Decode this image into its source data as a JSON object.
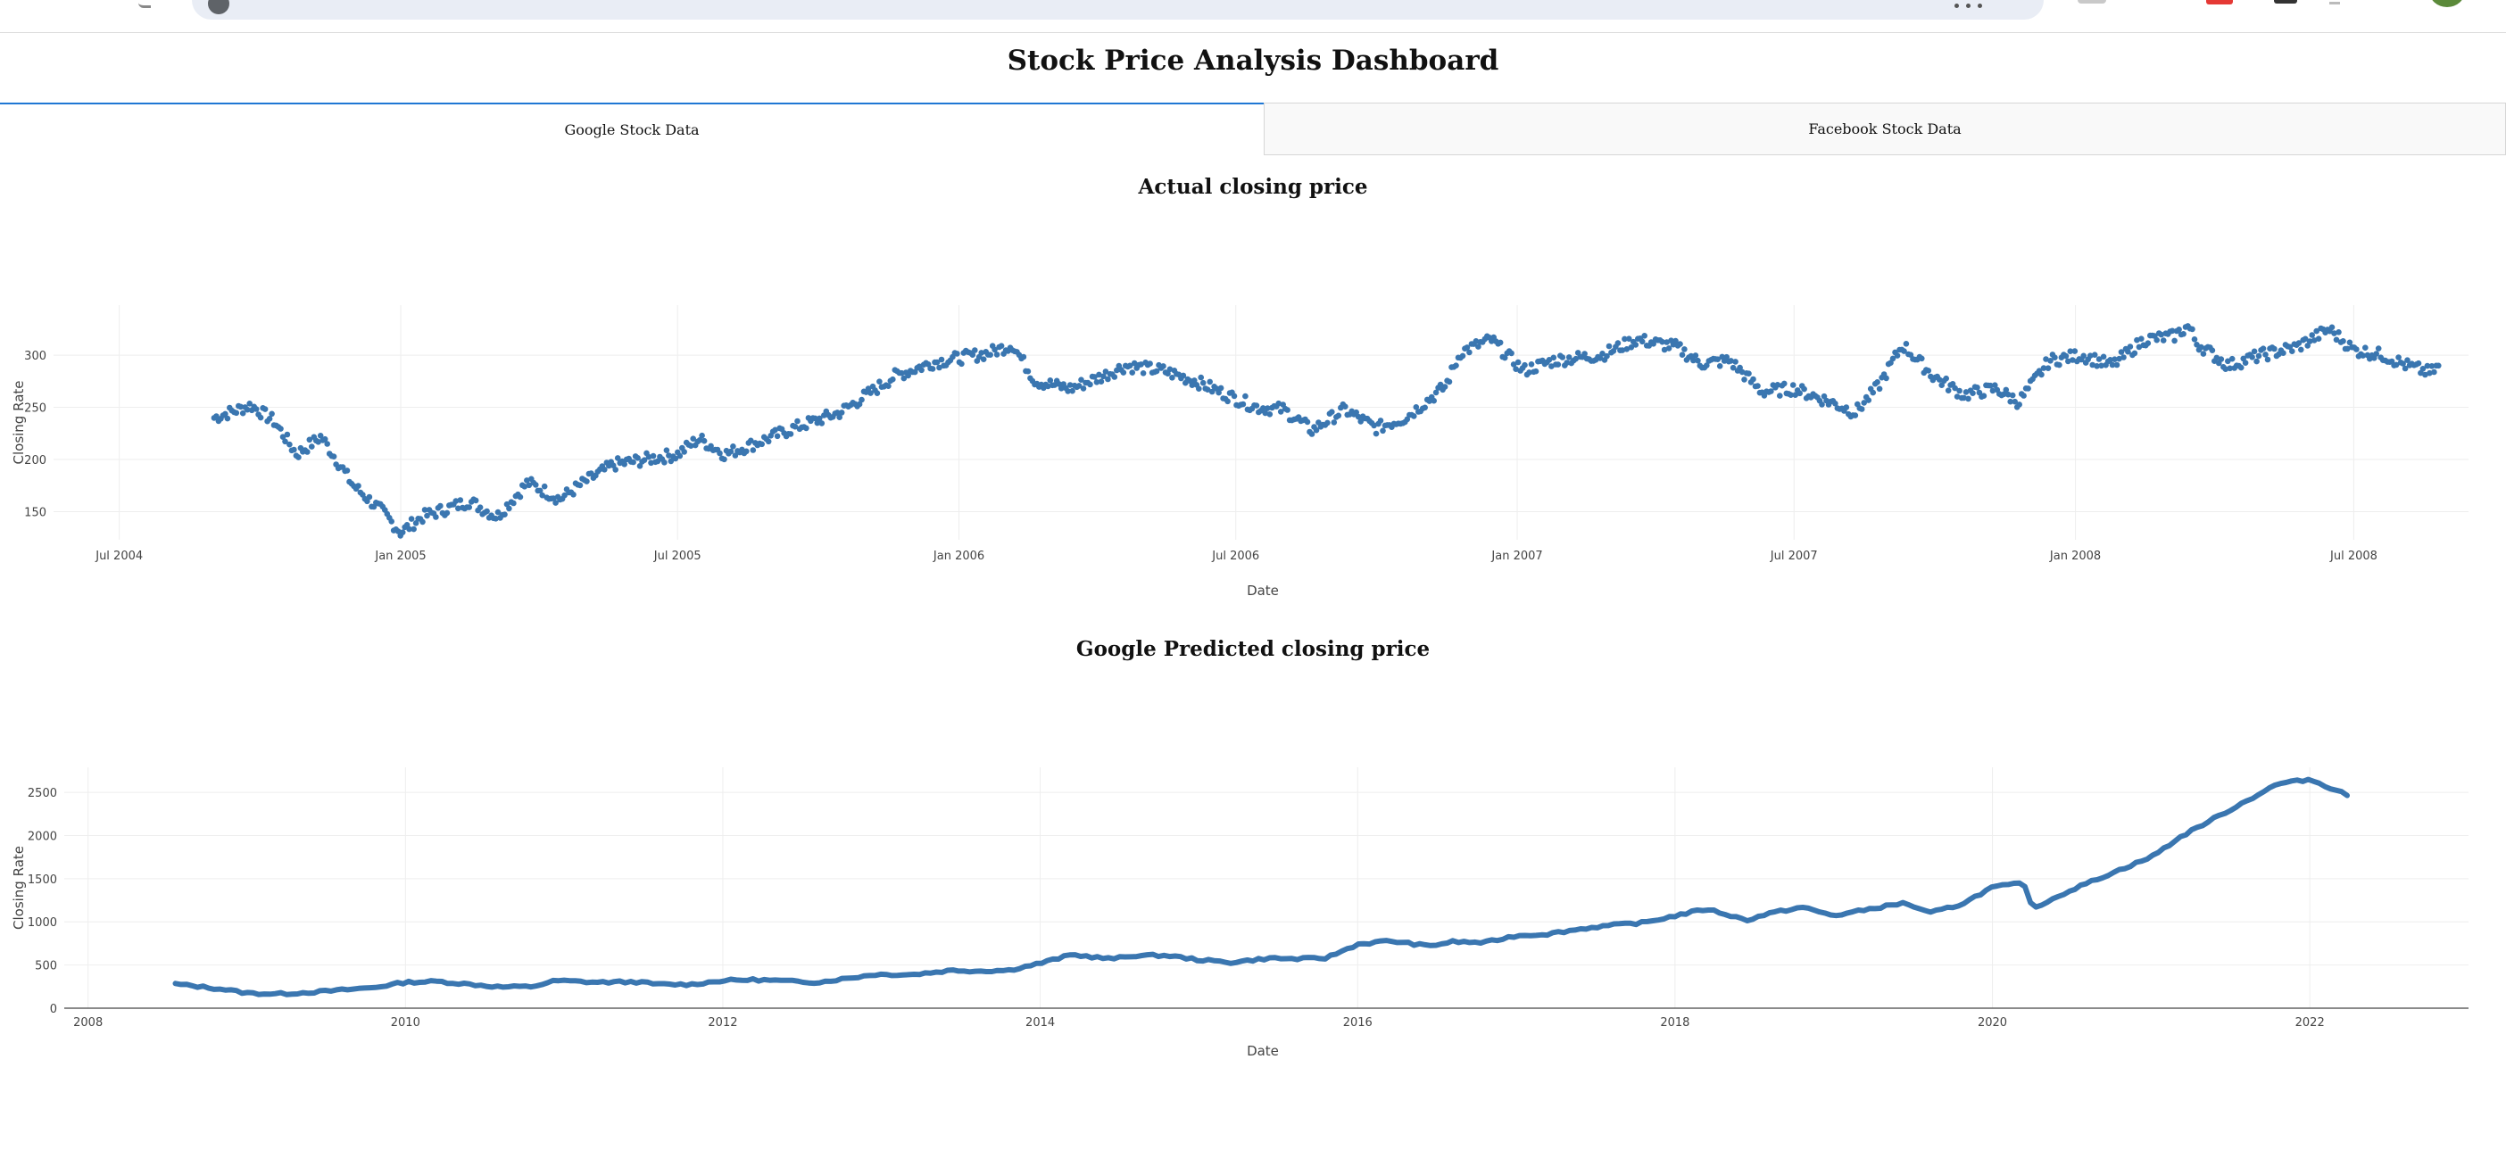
{
  "dashboard": {
    "title": "Stock Price Analysis Dashboard",
    "tabs": [
      {
        "label": "Google Stock Data",
        "active": true
      },
      {
        "label": "Facebook Stock Data",
        "active": false
      }
    ]
  },
  "colors": {
    "series": "#3a76b0",
    "tab_accent": "#1f77d4"
  },
  "chart_data": [
    {
      "type": "scatter",
      "title": "Actual closing price",
      "xlabel": "Date",
      "ylabel": "Closing Rate",
      "x_ticks": [
        "Jul 2004",
        "Jan 2005",
        "Jul 2005",
        "Jan 2006",
        "Jul 2006",
        "Jan 2007",
        "Jul 2007",
        "Jan 2008",
        "Jul 2008"
      ],
      "y_ticks": [
        150,
        200,
        250,
        300
      ],
      "xlim": [
        "2004-05-19",
        "2008-09-14"
      ],
      "ylim": [
        123,
        348
      ],
      "grid": true,
      "series": [
        {
          "points": [
            [
              "2004-09-01",
              240
            ],
            [
              "2004-09-25",
              252
            ],
            [
              "2004-10-10",
              237
            ],
            [
              "2004-10-25",
              205
            ],
            [
              "2004-11-10",
              222
            ],
            [
              "2004-12-01",
              175
            ],
            [
              "2004-12-20",
              150
            ],
            [
              "2005-01-01",
              130
            ],
            [
              "2005-01-15",
              145
            ],
            [
              "2005-02-15",
              160
            ],
            [
              "2005-03-05",
              145
            ],
            [
              "2005-03-25",
              178
            ],
            [
              "2005-04-15",
              162
            ],
            [
              "2005-05-01",
              178
            ],
            [
              "2005-05-20",
              195
            ],
            [
              "2005-06-10",
              200
            ],
            [
              "2005-07-01",
              205
            ],
            [
              "2005-07-15",
              220
            ],
            [
              "2005-08-01",
              205
            ],
            [
              "2005-08-20",
              215
            ],
            [
              "2005-09-15",
              230
            ],
            [
              "2005-10-15",
              245
            ],
            [
              "2005-11-05",
              265
            ],
            [
              "2005-11-20",
              280
            ],
            [
              "2005-12-15",
              293
            ],
            [
              "2006-01-20",
              302
            ],
            [
              "2006-02-05",
              310
            ],
            [
              "2006-02-20",
              275
            ],
            [
              "2006-03-15",
              268
            ],
            [
              "2006-04-05",
              280
            ],
            [
              "2006-04-20",
              290
            ],
            [
              "2006-05-15",
              285
            ],
            [
              "2006-06-05",
              275
            ],
            [
              "2006-06-25",
              262
            ],
            [
              "2006-07-15",
              250
            ],
            [
              "2006-08-01",
              248
            ],
            [
              "2006-08-20",
              228
            ],
            [
              "2006-09-10",
              248
            ],
            [
              "2006-10-01",
              230
            ],
            [
              "2006-10-20",
              240
            ],
            [
              "2006-11-15",
              270
            ],
            [
              "2006-11-25",
              303
            ],
            [
              "2006-12-15",
              315
            ],
            [
              "2007-01-05",
              285
            ],
            [
              "2007-01-25",
              295
            ],
            [
              "2007-02-25",
              300
            ],
            [
              "2007-03-20",
              315
            ],
            [
              "2007-04-15",
              308
            ],
            [
              "2007-05-01",
              292
            ],
            [
              "2007-05-20",
              295
            ],
            [
              "2007-06-10",
              265
            ],
            [
              "2007-07-01",
              268
            ],
            [
              "2007-07-25",
              255
            ],
            [
              "2007-08-10",
              245
            ],
            [
              "2007-08-25",
              270
            ],
            [
              "2007-09-10",
              310
            ],
            [
              "2007-09-30",
              280
            ],
            [
              "2007-10-20",
              262
            ],
            [
              "2007-11-10",
              268
            ],
            [
              "2007-11-25",
              255
            ],
            [
              "2007-12-15",
              295
            ],
            [
              "2008-01-05",
              300
            ],
            [
              "2008-01-25",
              290
            ],
            [
              "2008-02-15",
              315
            ],
            [
              "2008-03-05",
              318
            ],
            [
              "2008-03-15",
              328
            ],
            [
              "2008-03-20",
              312
            ],
            [
              "2008-04-10",
              290
            ],
            [
              "2008-05-01",
              300
            ],
            [
              "2008-05-25",
              308
            ],
            [
              "2008-06-15",
              325
            ],
            [
              "2008-07-01",
              305
            ],
            [
              "2008-07-20",
              300
            ],
            [
              "2008-08-05",
              290
            ],
            [
              "2008-08-20",
              283
            ],
            [
              "2008-08-26",
              290
            ]
          ]
        }
      ]
    },
    {
      "type": "line",
      "title": "Google Predicted closing price",
      "xlabel": "Date",
      "ylabel": "Closing Rate",
      "x_ticks": [
        "2008",
        "2010",
        "2012",
        "2014",
        "2016",
        "2018",
        "2020",
        "2022"
      ],
      "y_ticks": [
        0,
        500,
        1000,
        1500,
        2000,
        2500
      ],
      "xlim": [
        2007.85,
        2023.0
      ],
      "ylim": [
        0,
        2790
      ],
      "grid": true,
      "series": [
        {
          "points": [
            [
              2008.55,
              280
            ],
            [
              2008.7,
              250
            ],
            [
              2008.85,
              220
            ],
            [
              2009.0,
              175
            ],
            [
              2009.2,
              165
            ],
            [
              2009.45,
              190
            ],
            [
              2009.6,
              210
            ],
            [
              2009.8,
              240
            ],
            [
              2010.0,
              300
            ],
            [
              2010.2,
              310
            ],
            [
              2010.45,
              270
            ],
            [
              2010.6,
              245
            ],
            [
              2010.8,
              250
            ],
            [
              2010.95,
              320
            ],
            [
              2011.2,
              300
            ],
            [
              2011.45,
              305
            ],
            [
              2011.6,
              275
            ],
            [
              2011.8,
              275
            ],
            [
              2012.0,
              320
            ],
            [
              2012.2,
              330
            ],
            [
              2012.45,
              310
            ],
            [
              2012.6,
              300
            ],
            [
              2012.8,
              350
            ],
            [
              2012.95,
              390
            ],
            [
              2013.2,
              390
            ],
            [
              2013.45,
              440
            ],
            [
              2013.6,
              430
            ],
            [
              2013.8,
              440
            ],
            [
              2014.0,
              520
            ],
            [
              2014.2,
              620
            ],
            [
              2014.45,
              570
            ],
            [
              2014.6,
              610
            ],
            [
              2014.8,
              610
            ],
            [
              2015.0,
              560
            ],
            [
              2015.2,
              530
            ],
            [
              2015.45,
              580
            ],
            [
              2015.6,
              570
            ],
            [
              2015.8,
              580
            ],
            [
              2016.0,
              740
            ],
            [
              2016.2,
              780
            ],
            [
              2016.45,
              720
            ],
            [
              2016.6,
              770
            ],
            [
              2016.8,
              760
            ],
            [
              2017.0,
              840
            ],
            [
              2017.2,
              860
            ],
            [
              2017.45,
              930
            ],
            [
              2017.6,
              960
            ],
            [
              2017.8,
              990
            ],
            [
              2018.0,
              1070
            ],
            [
              2018.2,
              1150
            ],
            [
              2018.45,
              1020
            ],
            [
              2018.6,
              1100
            ],
            [
              2018.8,
              1170
            ],
            [
              2019.0,
              1070
            ],
            [
              2019.2,
              1140
            ],
            [
              2019.45,
              1220
            ],
            [
              2019.6,
              1100
            ],
            [
              2019.8,
              1200
            ],
            [
              2020.0,
              1400
            ],
            [
              2020.2,
              1450
            ],
            [
              2020.25,
              1150
            ],
            [
              2020.45,
              1330
            ],
            [
              2020.6,
              1450
            ],
            [
              2020.8,
              1600
            ],
            [
              2021.0,
              1750
            ],
            [
              2021.2,
              2000
            ],
            [
              2021.45,
              2250
            ],
            [
              2021.6,
              2400
            ],
            [
              2021.8,
              2600
            ],
            [
              2022.0,
              2650
            ],
            [
              2022.2,
              2500
            ],
            [
              2022.25,
              2450
            ]
          ]
        }
      ]
    }
  ]
}
